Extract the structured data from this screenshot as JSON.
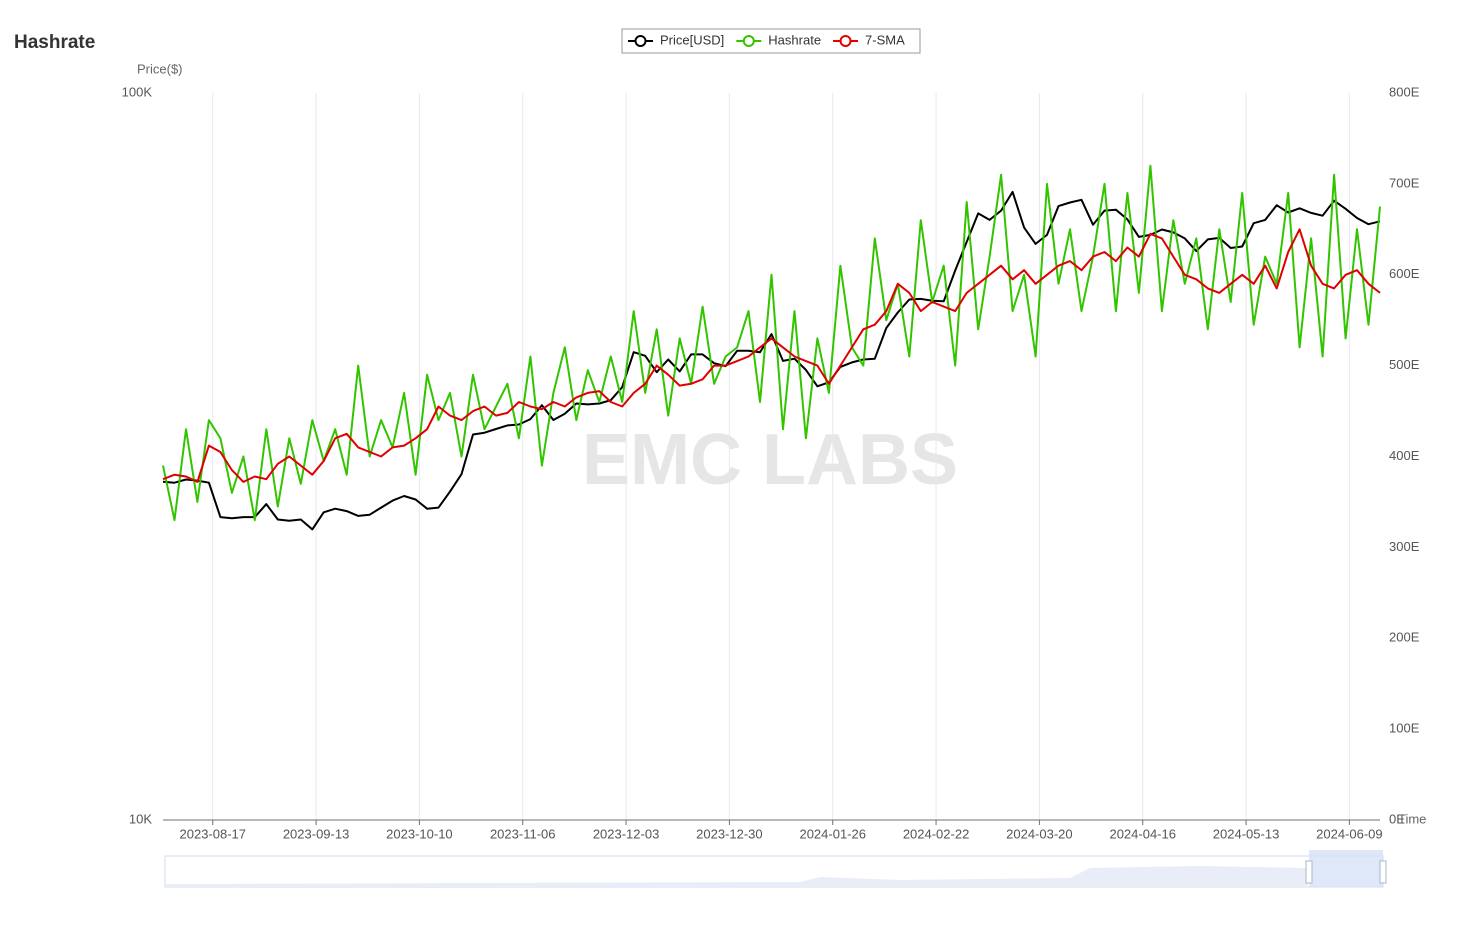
{
  "chart_data": {
    "type": "line",
    "title": "Hashrate",
    "watermark": "EMC LABS",
    "x_axis_label": "Time",
    "y_axis_label": "Price($)",
    "legend": "top",
    "grid": true,
    "ylog": true,
    "x": [
      "2023-08-04",
      "2023-08-07",
      "2023-08-10",
      "2023-08-13",
      "2023-08-16",
      "2023-08-19",
      "2023-08-22",
      "2023-08-25",
      "2023-08-28",
      "2023-08-31",
      "2023-09-03",
      "2023-09-06",
      "2023-09-09",
      "2023-09-12",
      "2023-09-15",
      "2023-09-18",
      "2023-09-21",
      "2023-09-24",
      "2023-09-27",
      "2023-09-30",
      "2023-10-03",
      "2023-10-06",
      "2023-10-09",
      "2023-10-12",
      "2023-10-15",
      "2023-10-18",
      "2023-10-21",
      "2023-10-24",
      "2023-10-27",
      "2023-10-30",
      "2023-11-02",
      "2023-11-05",
      "2023-11-08",
      "2023-11-11",
      "2023-11-14",
      "2023-11-17",
      "2023-11-20",
      "2023-11-23",
      "2023-11-26",
      "2023-11-29",
      "2023-12-02",
      "2023-12-05",
      "2023-12-08",
      "2023-12-11",
      "2023-12-14",
      "2023-12-17",
      "2023-12-20",
      "2023-12-23",
      "2023-12-26",
      "2023-12-29",
      "2024-01-01",
      "2024-01-04",
      "2024-01-07",
      "2024-01-10",
      "2024-01-13",
      "2024-01-16",
      "2024-01-19",
      "2024-01-22",
      "2024-01-25",
      "2024-01-28",
      "2024-01-31",
      "2024-02-03",
      "2024-02-06",
      "2024-02-09",
      "2024-02-12",
      "2024-02-15",
      "2024-02-18",
      "2024-02-21",
      "2024-02-24",
      "2024-02-27",
      "2024-03-01",
      "2024-03-04",
      "2024-03-07",
      "2024-03-10",
      "2024-03-13",
      "2024-03-16",
      "2024-03-19",
      "2024-03-22",
      "2024-03-25",
      "2024-03-28",
      "2024-03-31",
      "2024-04-03",
      "2024-04-06",
      "2024-04-09",
      "2024-04-12",
      "2024-04-15",
      "2024-04-18",
      "2024-04-21",
      "2024-04-24",
      "2024-04-27",
      "2024-04-30",
      "2024-05-03",
      "2024-05-06",
      "2024-05-09",
      "2024-05-12",
      "2024-05-15",
      "2024-05-18",
      "2024-05-21",
      "2024-05-24",
      "2024-05-27",
      "2024-05-30",
      "2024-06-02",
      "2024-06-05",
      "2024-06-08",
      "2024-06-11",
      "2024-06-14",
      "2024-06-17"
    ],
    "xlim": [
      "2023-08-04",
      "2024-06-17"
    ],
    "xticks": [
      "2023-08-17",
      "2023-09-13",
      "2023-10-10",
      "2023-11-06",
      "2023-12-03",
      "2023-12-30",
      "2024-01-26",
      "2024-02-22",
      "2024-03-20",
      "2024-04-16",
      "2024-05-13",
      "2024-06-09"
    ],
    "ylim": [
      10000,
      100000
    ],
    "yticks": [
      {
        "value": 10000,
        "label": "10K"
      },
      {
        "value": 100000,
        "label": "100K"
      }
    ],
    "y2lim": [
      0,
      800
    ],
    "y2ticks": [
      {
        "value": 0,
        "label": "0E"
      },
      {
        "value": 100,
        "label": "100E"
      },
      {
        "value": 200,
        "label": "200E"
      },
      {
        "value": 300,
        "label": "300E"
      },
      {
        "value": 400,
        "label": "400E"
      },
      {
        "value": 500,
        "label": "500E"
      },
      {
        "value": 600,
        "label": "600E"
      },
      {
        "value": 700,
        "label": "700E"
      },
      {
        "value": 800,
        "label": "800E"
      }
    ],
    "series": [
      {
        "name": "Price[USD]",
        "color": "#000000",
        "values": [
          29200,
          29100,
          29400,
          29300,
          29100,
          26100,
          26000,
          26100,
          26100,
          27200,
          25900,
          25800,
          25900,
          25100,
          26500,
          26800,
          26600,
          26200,
          26300,
          26900,
          27500,
          27900,
          27600,
          26800,
          26900,
          28300,
          29900,
          33900,
          34100,
          34500,
          34900,
          35000,
          35600,
          37200,
          35500,
          36200,
          37400,
          37300,
          37400,
          37800,
          39400,
          44000,
          43500,
          41300,
          43000,
          41400,
          43700,
          43700,
          42500,
          42100,
          44200,
          44200,
          44000,
          46600,
          42800,
          43100,
          41600,
          39500,
          40000,
          42000,
          42600,
          43000,
          43100,
          47500,
          49900,
          52000,
          52100,
          51800,
          51700,
          57000,
          62400,
          68300,
          66900,
          68900,
          73100,
          65300,
          62000,
          63800,
          69900,
          70700,
          71300,
          65900,
          68900,
          69100,
          67000,
          63400,
          63800,
          64900,
          64300,
          63100,
          60600,
          62900,
          63200,
          61200,
          61500,
          66200,
          66900,
          70100,
          68500,
          69400,
          68400,
          67800,
          71100,
          69300,
          67300,
          66000,
          66600
        ]
      },
      {
        "name": "Hashrate",
        "color": "#33c400",
        "axis": "y2",
        "values": [
          390,
          330,
          430,
          350,
          440,
          420,
          360,
          400,
          330,
          430,
          345,
          420,
          370,
          440,
          395,
          430,
          380,
          500,
          400,
          440,
          410,
          470,
          380,
          490,
          440,
          470,
          400,
          490,
          430,
          455,
          480,
          420,
          510,
          390,
          470,
          520,
          440,
          495,
          460,
          510,
          460,
          560,
          470,
          540,
          445,
          530,
          480,
          565,
          480,
          510,
          520,
          560,
          460,
          600,
          430,
          560,
          420,
          530,
          470,
          610,
          520,
          500,
          640,
          550,
          590,
          510,
          660,
          570,
          610,
          500,
          680,
          540,
          620,
          710,
          560,
          600,
          510,
          700,
          590,
          650,
          560,
          620,
          700,
          560,
          690,
          580,
          720,
          560,
          660,
          590,
          640,
          540,
          650,
          570,
          690,
          545,
          620,
          590,
          690,
          520,
          640,
          510,
          710,
          530,
          650,
          545,
          675
        ]
      },
      {
        "name": "7-SMA",
        "color": "#e00000",
        "axis": "y2",
        "values": [
          375,
          380,
          378,
          372,
          412,
          405,
          385,
          372,
          378,
          375,
          392,
          400,
          390,
          380,
          395,
          420,
          425,
          410,
          405,
          400,
          410,
          412,
          420,
          430,
          455,
          445,
          440,
          450,
          455,
          445,
          448,
          460,
          455,
          452,
          460,
          455,
          465,
          470,
          472,
          460,
          455,
          470,
          480,
          500,
          490,
          478,
          480,
          485,
          500,
          500,
          505,
          510,
          520,
          530,
          520,
          510,
          505,
          500,
          480,
          500,
          520,
          540,
          545,
          560,
          590,
          580,
          560,
          570,
          565,
          560,
          580,
          590,
          600,
          610,
          595,
          605,
          590,
          600,
          610,
          615,
          605,
          620,
          625,
          615,
          630,
          620,
          645,
          640,
          620,
          600,
          595,
          585,
          580,
          590,
          600,
          590,
          610,
          585,
          625,
          650,
          610,
          590,
          585,
          600,
          605,
          590,
          580
        ]
      }
    ]
  }
}
